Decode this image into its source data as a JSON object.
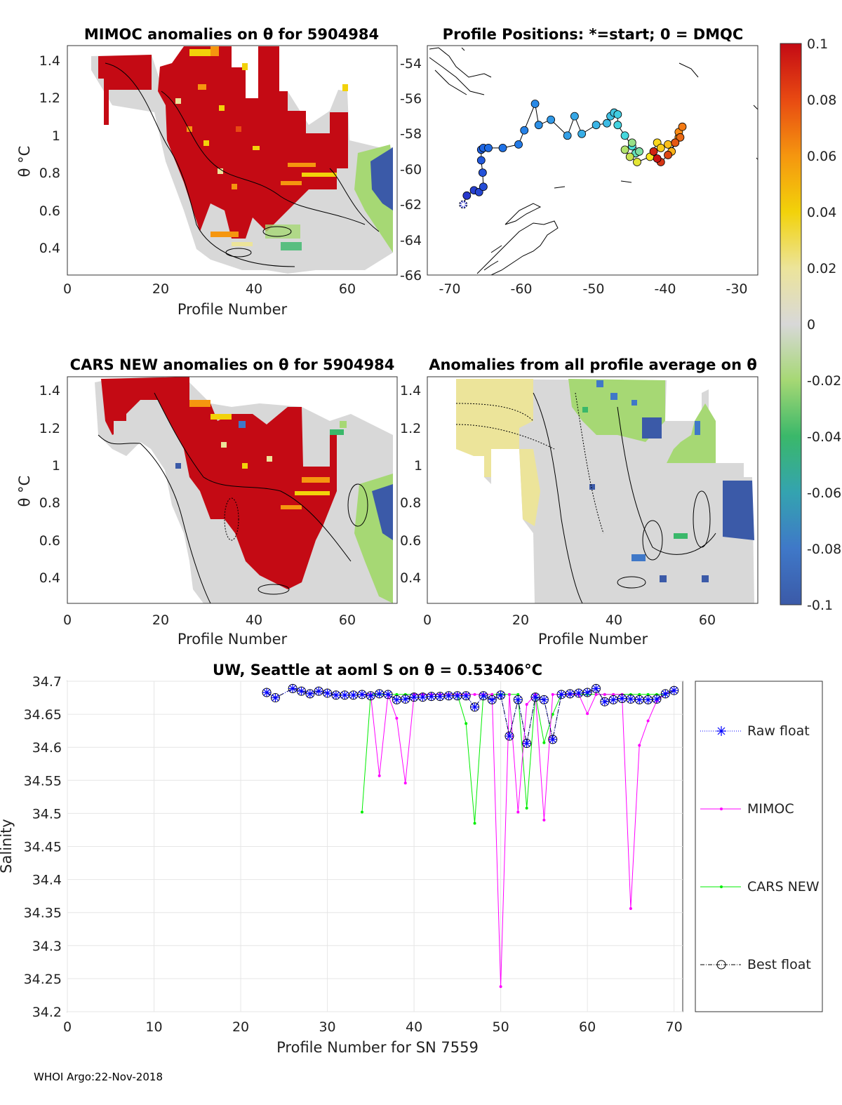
{
  "float_sn": "5904984",
  "footer": "WHOI Argo:22-Nov-2018",
  "colorbar": {
    "ticks": [
      "0.1",
      "0.08",
      "0.06",
      "0.04",
      "0.02",
      "0",
      "-0.02",
      "-0.04",
      "-0.06",
      "-0.08",
      "-0.1"
    ],
    "range": [
      -0.1,
      0.1
    ]
  },
  "panels": {
    "mimoc": {
      "title": "MIMOC anomalies on θ  for 5904984",
      "xlabel": "Profile Number",
      "ylabel": "θ °C",
      "xticks": [
        "0",
        "20",
        "40",
        "60"
      ],
      "yticks": [
        "1.4",
        "1.2",
        "1",
        "0.8",
        "0.6",
        "0.4"
      ]
    },
    "positions": {
      "title": "Profile Positions: *=start; 0 = DMQC",
      "xticks": [
        "-70",
        "-60",
        "-50",
        "-40",
        "-30"
      ],
      "yticks": [
        "-54",
        "-56",
        "-58",
        "-60",
        "-62",
        "-64",
        "-66"
      ]
    },
    "cars": {
      "title": "CARS NEW anomalies on θ for 5904984",
      "xlabel": "Profile Number",
      "ylabel": "θ °C",
      "xticks": [
        "0",
        "20",
        "40",
        "60"
      ],
      "yticks": [
        "1.4",
        "1.2",
        "1",
        "0.8",
        "0.6",
        "0.4"
      ]
    },
    "avg": {
      "title": "Anomalies from all profile average on θ",
      "xlabel": "Profile Number",
      "xticks": [
        "0",
        "20",
        "40",
        "60"
      ],
      "yticks": [
        "1.4",
        "1.2",
        "1",
        "0.8",
        "0.6",
        "0.4"
      ]
    }
  },
  "chart_data": [
    {
      "type": "line",
      "title": "UW, Seattle at aoml S on θ = 0.53406°C",
      "xlabel": "Profile Number for SN 7559",
      "ylabel": "Salinity",
      "xlim": [
        0,
        71
      ],
      "ylim": [
        34.2,
        34.7
      ],
      "xticks": [
        "0",
        "10",
        "20",
        "30",
        "40",
        "50",
        "60",
        "70"
      ],
      "yticks": [
        "34.7",
        "34.65",
        "34.6",
        "34.55",
        "34.5",
        "34.45",
        "34.4",
        "34.35",
        "34.3",
        "34.25",
        "34.2"
      ],
      "legend": [
        "Raw float",
        "MIMOC",
        "CARS NEW",
        "Best float"
      ],
      "legend_location": "outside-right",
      "x": [
        23,
        24,
        26,
        27,
        28,
        29,
        30,
        31,
        32,
        33,
        34,
        35,
        36,
        37,
        38,
        39,
        40,
        41,
        42,
        43,
        44,
        45,
        46,
        47,
        48,
        49,
        50,
        51,
        52,
        53,
        54,
        55,
        56,
        57,
        58,
        59,
        60,
        61,
        62,
        63,
        64,
        65,
        66,
        67,
        68,
        69,
        70
      ],
      "series": [
        {
          "name": "Raw float",
          "values": [
            34.683,
            34.675,
            34.689,
            34.685,
            34.681,
            34.685,
            34.682,
            34.679,
            34.679,
            34.679,
            34.68,
            34.678,
            34.681,
            34.68,
            34.672,
            34.673,
            34.676,
            34.676,
            34.677,
            34.677,
            34.678,
            34.678,
            34.678,
            34.661,
            34.678,
            34.672,
            34.679,
            34.617,
            34.672,
            34.606,
            34.676,
            34.672,
            34.612,
            34.68,
            34.681,
            34.682,
            34.683,
            34.689,
            34.669,
            34.672,
            34.674,
            34.673,
            34.672,
            34.672,
            34.673,
            34.681,
            34.686
          ]
        },
        {
          "name": "MIMOC",
          "values": [
            null,
            null,
            null,
            null,
            null,
            null,
            null,
            null,
            null,
            null,
            34.68,
            34.68,
            34.557,
            34.68,
            34.644,
            34.546,
            34.68,
            34.68,
            34.68,
            34.68,
            34.68,
            34.68,
            34.68,
            34.68,
            34.68,
            34.68,
            34.238,
            34.68,
            34.502,
            34.665,
            34.68,
            34.49,
            34.68,
            34.68,
            34.68,
            34.68,
            34.651,
            34.68,
            34.68,
            34.68,
            34.68,
            34.356,
            34.603,
            34.64,
            34.67,
            34.681,
            34.686
          ]
        },
        {
          "name": "CARS NEW",
          "values": [
            null,
            null,
            null,
            null,
            null,
            null,
            null,
            null,
            null,
            null,
            34.502,
            34.68,
            34.68,
            34.68,
            34.68,
            34.68,
            34.68,
            34.68,
            34.68,
            34.68,
            34.68,
            34.68,
            34.636,
            34.485,
            34.68,
            34.68,
            34.68,
            34.68,
            34.68,
            34.508,
            34.68,
            34.607,
            34.65,
            34.68,
            34.68,
            34.68,
            34.68,
            34.68,
            34.68,
            34.68,
            34.68,
            34.68,
            34.68,
            34.68,
            34.68,
            34.68,
            34.686
          ]
        },
        {
          "name": "Best float",
          "values": [
            34.683,
            34.675,
            34.689,
            34.685,
            34.681,
            34.685,
            34.682,
            34.679,
            34.679,
            34.679,
            34.68,
            34.678,
            34.681,
            34.68,
            34.672,
            34.673,
            34.676,
            34.676,
            34.677,
            34.677,
            34.678,
            34.678,
            34.678,
            34.661,
            34.678,
            34.672,
            34.679,
            34.617,
            34.672,
            34.606,
            34.676,
            34.672,
            34.612,
            34.68,
            34.681,
            34.682,
            34.683,
            34.689,
            34.669,
            34.672,
            34.674,
            34.673,
            34.672,
            34.672,
            34.673,
            34.681,
            34.686
          ]
        }
      ],
      "colors": {
        "Raw float": "#0000ff",
        "MIMOC": "#ff00ff",
        "CARS NEW": "#00ee00",
        "Best float": "#000000"
      }
    },
    {
      "type": "scatter",
      "title": "Profile Positions: *=start; 0 = DMQC",
      "xlim": [
        -73,
        -27
      ],
      "ylim": [
        -66,
        -53
      ],
      "x": [
        -68,
        -67.5,
        -66.5,
        -65.8,
        -65.2,
        -65.3,
        -65.5,
        -65.5,
        -65.2,
        -64.5,
        -62.5,
        -60.3,
        -59.5,
        -58,
        -57.5,
        -55.8,
        -53.5,
        -52.5,
        -51.5,
        -49.5,
        -48,
        -47.5,
        -47,
        -46.5,
        -46.5,
        -45.5,
        -44.5,
        -44,
        -43.5,
        -44.5,
        -45.5,
        -44.8,
        -43.8,
        -42,
        -41,
        -40.5,
        -39.5,
        -39,
        -38.5,
        -38,
        -38,
        -37.5,
        -37.8,
        -38.5,
        -39.5,
        -40.5,
        -41.5,
        -41
      ],
      "y": [
        -62,
        -61.5,
        -61.2,
        -61.3,
        -61,
        -60.2,
        -59.5,
        -58.9,
        -58.8,
        -58.8,
        -58.8,
        -58.6,
        -57.8,
        -56.3,
        -57.5,
        -57.2,
        -58.1,
        -57,
        -58,
        -57.5,
        -57.4,
        -57,
        -56.8,
        -56.9,
        -57.5,
        -58.1,
        -58.7,
        -59.1,
        -59,
        -58.5,
        -58.9,
        -59.3,
        -59.6,
        -59.3,
        -58.5,
        -58.8,
        -58.6,
        -59,
        -58.5,
        -58.2,
        -57.9,
        -57.6,
        -58.2,
        -58.5,
        -59.2,
        -59.6,
        -59.0,
        -59.4
      ],
      "profile_index": [
        1,
        2,
        3,
        4,
        5,
        6,
        7,
        8,
        9,
        10,
        11,
        12,
        13,
        14,
        15,
        16,
        17,
        18,
        19,
        20,
        21,
        22,
        23,
        24,
        25,
        26,
        27,
        28,
        29,
        30,
        31,
        32,
        33,
        34,
        35,
        36,
        37,
        38,
        39,
        40,
        41,
        42,
        43,
        44,
        45,
        46,
        47,
        48
      ]
    }
  ]
}
